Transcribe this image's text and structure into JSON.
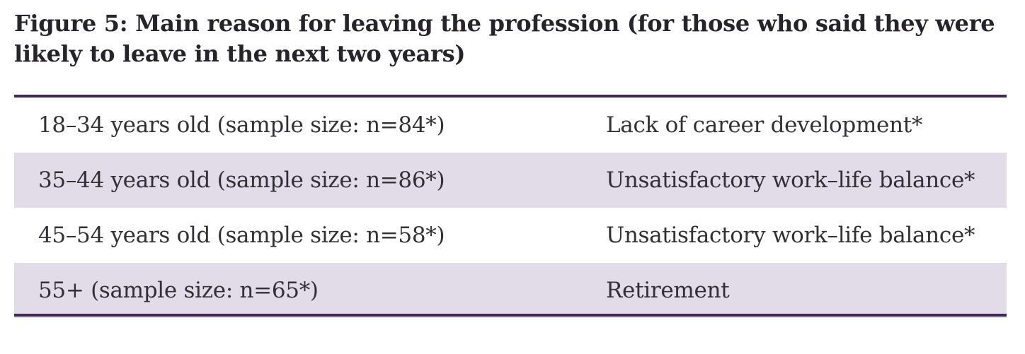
{
  "figure": {
    "title_line1": "Figure 5: Main reason for leaving the profession (for those who said they were",
    "title_line2": "likely to leave in the next two years)"
  },
  "table": {
    "rows": [
      {
        "age_group": "18–34 years old (sample size: n=84*)",
        "reason": "Lack of career development*",
        "shaded": false
      },
      {
        "age_group": "35–44 years old (sample size: n=86*)",
        "reason": "Unsatisfactory work–life balance*",
        "shaded": true
      },
      {
        "age_group": "45–54 years old (sample size: n=58*)",
        "reason": "Unsatisfactory work–life balance*",
        "shaded": false
      },
      {
        "age_group": "55+ (sample size: n=65*)",
        "reason": "Retirement",
        "shaded": true
      }
    ]
  },
  "colors": {
    "rule": "#3F2A56",
    "row_shade": "#E1DCE8",
    "title_text": "#27232A",
    "body_text": "#323034"
  }
}
